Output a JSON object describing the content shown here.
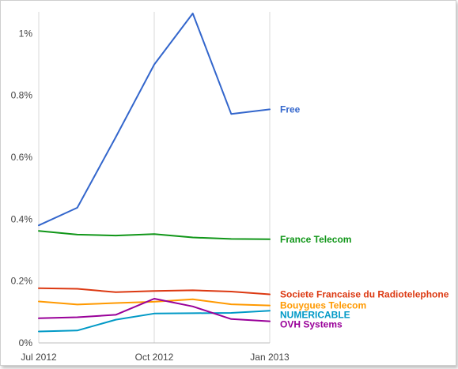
{
  "chart_data": {
    "type": "line",
    "title": "",
    "xlabel": "",
    "ylabel": "",
    "x": [
      "Jul 2012",
      "Aug 2012",
      "Sep 2012",
      "Oct 2012",
      "Nov 2012",
      "Dec 2012",
      "Jan 2013"
    ],
    "x_tick_labels": [
      "Jul 2012",
      "Oct 2012",
      "Jan 2013"
    ],
    "y_tick_labels": [
      "0%",
      "0.2%",
      "0.4%",
      "0.6%",
      "0.8%",
      "1%"
    ],
    "ylim": [
      0,
      1.07
    ],
    "y_unit": "%",
    "grid": "vertical lines at labeled months, horizontal baseline",
    "legend": "labels at right end of each line",
    "series": [
      {
        "name": "Free",
        "color": "#3366cc",
        "values": [
          0.38,
          0.437,
          0.665,
          0.9,
          1.065,
          0.74,
          0.755
        ]
      },
      {
        "name": "France Telecom",
        "color": "#109618",
        "values": [
          0.362,
          0.35,
          0.347,
          0.352,
          0.341,
          0.336,
          0.335
        ]
      },
      {
        "name": "Societe Francaise du Radiotelephone",
        "color": "#dc3912",
        "values": [
          0.177,
          0.175,
          0.164,
          0.168,
          0.17,
          0.166,
          0.157
        ]
      },
      {
        "name": "Bouygues Telecom",
        "color": "#ff9900",
        "values": [
          0.134,
          0.124,
          0.129,
          0.133,
          0.141,
          0.125,
          0.121
        ]
      },
      {
        "name": "NUMERICABLE",
        "color": "#0099c6",
        "values": [
          0.037,
          0.04,
          0.075,
          0.095,
          0.096,
          0.097,
          0.104
        ]
      },
      {
        "name": "OVH Systems",
        "color": "#990099",
        "values": [
          0.08,
          0.083,
          0.091,
          0.143,
          0.118,
          0.077,
          0.07
        ]
      }
    ]
  }
}
